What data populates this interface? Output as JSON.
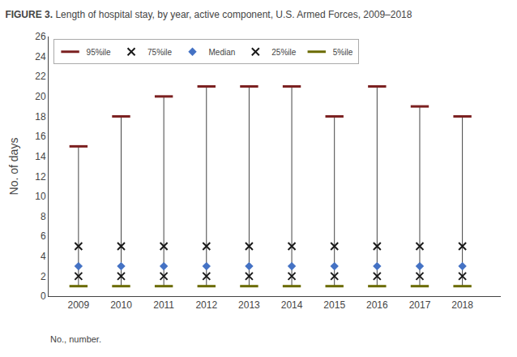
{
  "chart_data": {
    "type": "scatter",
    "title": "FIGURE 3. Length of hospital stay, by year, active component, U.S. Armed Forces, 2009–2018",
    "y_label": "No. of days",
    "annotations": [
      "No., number."
    ],
    "x": [
      2009,
      2010,
      2011,
      2012,
      2013,
      2014,
      2015,
      2016,
      2017,
      2018
    ],
    "series": [
      {
        "name": "95%ile",
        "color": "#7B2020",
        "marker": "hline",
        "values": [
          15,
          18,
          20,
          21,
          21,
          21,
          18,
          21,
          19,
          18
        ]
      },
      {
        "name": "75%ile",
        "color": "#1a1a1a",
        "marker": "x",
        "values": [
          5,
          5,
          5,
          5,
          5,
          5,
          5,
          5,
          5,
          5
        ]
      },
      {
        "name": "Median",
        "color": "#4472C4",
        "marker": "diamond",
        "values": [
          3,
          3,
          3,
          3,
          3,
          3,
          3,
          3,
          3,
          3
        ]
      },
      {
        "name": "25%ile",
        "color": "#1a1a1a",
        "marker": "x",
        "values": [
          2,
          2,
          2,
          2,
          2,
          2,
          2,
          2,
          2,
          2
        ]
      },
      {
        "name": "5%ile",
        "color": "#6B6B00",
        "marker": "hline",
        "values": [
          1,
          1,
          1,
          1,
          1,
          1,
          1,
          1,
          1,
          1
        ]
      }
    ],
    "xlim": [
      2008.3,
      2018.9
    ],
    "xticks": [
      2009,
      2010,
      2011,
      2012,
      2013,
      2014,
      2015,
      2016,
      2017,
      2018
    ],
    "ylim": [
      0,
      26
    ],
    "yticks": [
      0,
      2,
      4,
      6,
      8,
      10,
      12,
      14,
      16,
      18,
      20,
      22,
      24,
      26
    ],
    "grid": false,
    "legend": "upper left"
  }
}
